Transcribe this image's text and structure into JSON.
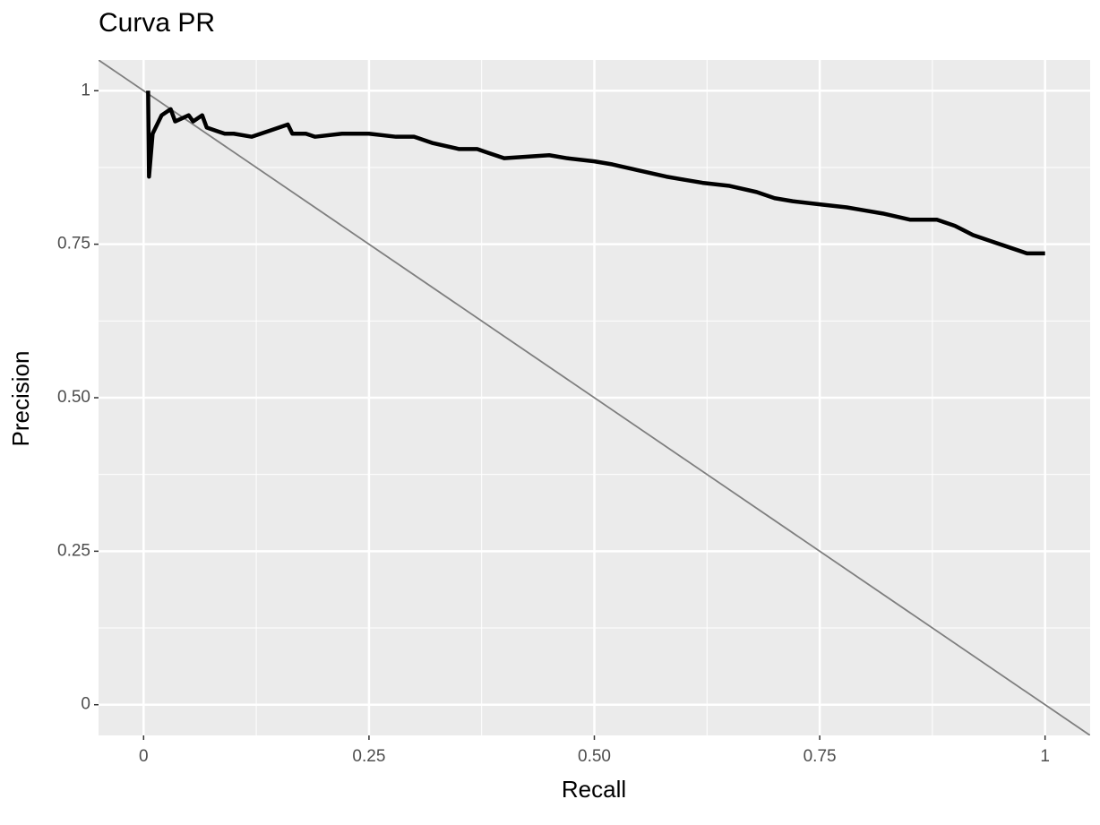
{
  "chart_data": {
    "type": "line",
    "title": "Curva PR",
    "x_label": "Recall",
    "y_label": "Precision",
    "series": [
      {
        "color": "#000000",
        "x": [
          0.005,
          0.006,
          0.01,
          0.02,
          0.03,
          0.035,
          0.05,
          0.055,
          0.065,
          0.07,
          0.08,
          0.09,
          0.1,
          0.12,
          0.14,
          0.16,
          0.165,
          0.18,
          0.19,
          0.22,
          0.25,
          0.28,
          0.3,
          0.32,
          0.35,
          0.37,
          0.38,
          0.4,
          0.45,
          0.47,
          0.5,
          0.52,
          0.55,
          0.58,
          0.6,
          0.62,
          0.65,
          0.68,
          0.7,
          0.72,
          0.75,
          0.78,
          0.8,
          0.82,
          0.85,
          0.87,
          0.88,
          0.9,
          0.92,
          0.94,
          0.96,
          0.98,
          1.0
        ],
        "values": [
          1.0,
          0.86,
          0.93,
          0.96,
          0.97,
          0.95,
          0.96,
          0.95,
          0.96,
          0.94,
          0.935,
          0.93,
          0.93,
          0.925,
          0.935,
          0.945,
          0.93,
          0.93,
          0.925,
          0.93,
          0.93,
          0.925,
          0.925,
          0.915,
          0.905,
          0.905,
          0.9,
          0.89,
          0.895,
          0.89,
          0.885,
          0.88,
          0.87,
          0.86,
          0.855,
          0.85,
          0.845,
          0.835,
          0.825,
          0.82,
          0.815,
          0.81,
          0.805,
          0.8,
          0.79,
          0.79,
          0.79,
          0.78,
          0.765,
          0.755,
          0.745,
          0.735,
          0.735
        ]
      }
    ],
    "reference_line": {
      "intercept": 1,
      "slope": -1,
      "color": "#7f7f7f"
    },
    "xlim": [
      -0.05,
      1.05
    ],
    "ylim": [
      -0.05,
      1.05
    ],
    "xticks": [
      0,
      0.25,
      {
        "value": 0.5,
        "label": "0.50"
      },
      0.75,
      1
    ],
    "yticks": [
      0,
      0.25,
      {
        "value": 0.5,
        "label": "0.50"
      },
      0.75,
      1
    ],
    "grid": true,
    "minor_grid": true,
    "panel_color": "#ebebeb"
  }
}
